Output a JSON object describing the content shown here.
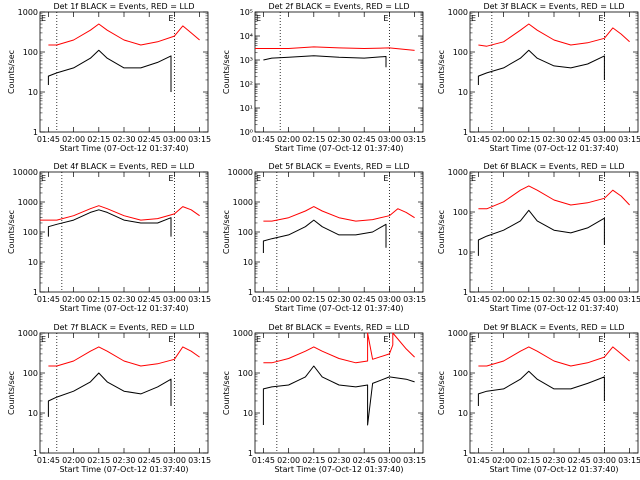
{
  "figure": {
    "xlabel": "Start Time (07-Oct-12 01:37:40)",
    "ylabel": "Counts/sec",
    "x_tick_labels": [
      "01:45",
      "02:00",
      "02:15",
      "02:30",
      "02:45",
      "03:00",
      "03:15"
    ],
    "corner_marker": "E",
    "colors": {
      "events": "#000000",
      "lld": "#ff0000"
    }
  },
  "chart_data": [
    {
      "type": "line",
      "title": "Det 1f BLACK = Events, RED = LLD",
      "x_range": [
        "01:40",
        "03:20"
      ],
      "y_scale": "log",
      "y_range": [
        1,
        1000
      ],
      "y_tick_labels": [
        "1",
        "10",
        "100",
        "1000"
      ],
      "vlines": [
        "01:50",
        "03:00"
      ],
      "series": [
        {
          "name": "Events",
          "color": "#000000",
          "x": [
            "01:45",
            "01:45",
            "01:50",
            "02:00",
            "02:10",
            "02:15",
            "02:20",
            "02:30",
            "02:40",
            "02:50",
            "02:58",
            "02:58"
          ],
          "y": [
            15,
            25,
            30,
            40,
            70,
            110,
            70,
            40,
            40,
            55,
            80,
            10
          ]
        },
        {
          "name": "LLD",
          "color": "#ff0000",
          "x": [
            "01:45",
            "01:50",
            "02:00",
            "02:10",
            "02:15",
            "02:20",
            "02:30",
            "02:40",
            "02:50",
            "03:00",
            "03:05",
            "03:10",
            "03:15"
          ],
          "y": [
            150,
            150,
            200,
            350,
            500,
            350,
            200,
            150,
            180,
            250,
            450,
            300,
            200
          ]
        }
      ]
    },
    {
      "type": "line",
      "title": "Det 2f BLACK = Events, RED = LLD",
      "x_range": [
        "01:40",
        "03:20"
      ],
      "y_scale": "log",
      "y_range": [
        1,
        100000
      ],
      "y_tick_labels": [
        "10⁰",
        "10¹",
        "10²",
        "10³",
        "10⁴",
        "10⁵"
      ],
      "vlines": [
        "01:55",
        "03:00"
      ],
      "series": [
        {
          "name": "Events",
          "color": "#000000",
          "x": [
            "01:45",
            "01:50",
            "02:00",
            "02:15",
            "02:30",
            "02:45",
            "02:58",
            "02:58"
          ],
          "y": [
            1000,
            1200,
            1300,
            1500,
            1300,
            1200,
            1400,
            500
          ]
        },
        {
          "name": "LLD",
          "color": "#ff0000",
          "x": [
            "01:40",
            "02:00",
            "02:15",
            "02:30",
            "02:45",
            "03:00",
            "03:15"
          ],
          "y": [
            3000,
            3000,
            3500,
            3200,
            3000,
            3200,
            2500
          ]
        }
      ]
    },
    {
      "type": "line",
      "title": "Det 3f BLACK = Events, RED = LLD",
      "x_range": [
        "01:40",
        "03:20"
      ],
      "y_scale": "log",
      "y_range": [
        1,
        1000
      ],
      "y_tick_labels": [
        "1",
        "10",
        "100",
        "1000"
      ],
      "vlines": [
        "01:53",
        "03:00"
      ],
      "series": [
        {
          "name": "Events",
          "color": "#000000",
          "x": [
            "01:45",
            "01:45",
            "01:50",
            "02:00",
            "02:10",
            "02:15",
            "02:20",
            "02:30",
            "02:40",
            "02:50",
            "03:00",
            "03:00"
          ],
          "y": [
            15,
            25,
            30,
            40,
            70,
            110,
            70,
            45,
            40,
            50,
            80,
            20
          ]
        },
        {
          "name": "LLD",
          "color": "#ff0000",
          "x": [
            "01:45",
            "01:50",
            "02:00",
            "02:10",
            "02:15",
            "02:20",
            "02:30",
            "02:40",
            "02:50",
            "03:00",
            "03:05",
            "03:10",
            "03:15"
          ],
          "y": [
            150,
            140,
            180,
            350,
            500,
            350,
            200,
            150,
            170,
            220,
            400,
            280,
            180
          ]
        }
      ]
    },
    {
      "type": "line",
      "title": "Det 4f BLACK = Events, RED = LLD",
      "x_range": [
        "01:40",
        "03:20"
      ],
      "y_scale": "log",
      "y_range": [
        1,
        10000
      ],
      "y_tick_labels": [
        "1",
        "10",
        "100",
        "1000",
        "10000"
      ],
      "vlines": [
        "01:53",
        "03:00"
      ],
      "series": [
        {
          "name": "Events",
          "color": "#000000",
          "x": [
            "01:45",
            "01:45",
            "01:50",
            "02:00",
            "02:10",
            "02:15",
            "02:20",
            "02:30",
            "02:40",
            "02:50",
            "02:58",
            "02:58"
          ],
          "y": [
            70,
            150,
            180,
            250,
            450,
            550,
            450,
            250,
            200,
            200,
            300,
            70
          ]
        },
        {
          "name": "LLD",
          "color": "#ff0000",
          "x": [
            "01:40",
            "01:50",
            "02:00",
            "02:10",
            "02:15",
            "02:20",
            "02:30",
            "02:40",
            "02:50",
            "03:00",
            "03:05",
            "03:10",
            "03:15"
          ],
          "y": [
            250,
            250,
            350,
            600,
            750,
            600,
            350,
            250,
            280,
            400,
            700,
            550,
            350
          ]
        }
      ]
    },
    {
      "type": "line",
      "title": "Det 5f BLACK = Events, RED = LLD",
      "x_range": [
        "01:40",
        "03:20"
      ],
      "y_scale": "log",
      "y_range": [
        1,
        10000
      ],
      "y_tick_labels": [
        "1",
        "10",
        "100",
        "1000",
        "10000"
      ],
      "vlines": [
        "01:53",
        "03:00"
      ],
      "series": [
        {
          "name": "Events",
          "color": "#000000",
          "x": [
            "01:45",
            "01:45",
            "01:50",
            "02:00",
            "02:10",
            "02:15",
            "02:20",
            "02:30",
            "02:40",
            "02:50",
            "02:58",
            "02:58"
          ],
          "y": [
            20,
            50,
            60,
            80,
            150,
            250,
            150,
            80,
            80,
            100,
            180,
            30
          ]
        },
        {
          "name": "LLD",
          "color": "#ff0000",
          "x": [
            "01:45",
            "01:50",
            "02:00",
            "02:10",
            "02:15",
            "02:20",
            "02:30",
            "02:40",
            "02:50",
            "03:00",
            "03:05",
            "03:10",
            "03:15"
          ],
          "y": [
            230,
            230,
            300,
            500,
            700,
            500,
            300,
            230,
            260,
            350,
            600,
            450,
            300
          ]
        }
      ]
    },
    {
      "type": "line",
      "title": "Det 6f BLACK = Events, RED = LLD",
      "x_range": [
        "01:40",
        "03:20"
      ],
      "y_scale": "log",
      "y_range": [
        1,
        1000
      ],
      "y_tick_labels": [
        "1",
        "10",
        "100",
        "1000"
      ],
      "vlines": [
        "01:53",
        "03:00"
      ],
      "series": [
        {
          "name": "Events",
          "color": "#000000",
          "x": [
            "01:45",
            "01:45",
            "01:50",
            "02:00",
            "02:10",
            "02:15",
            "02:20",
            "02:30",
            "02:40",
            "02:50",
            "03:00",
            "03:00"
          ],
          "y": [
            8,
            20,
            25,
            35,
            60,
            110,
            60,
            35,
            30,
            40,
            70,
            15
          ]
        },
        {
          "name": "LLD",
          "color": "#ff0000",
          "x": [
            "01:45",
            "01:50",
            "02:00",
            "02:10",
            "02:15",
            "02:20",
            "02:30",
            "02:40",
            "02:50",
            "03:00",
            "03:05",
            "03:10",
            "03:15"
          ],
          "y": [
            120,
            120,
            180,
            350,
            450,
            350,
            200,
            150,
            170,
            220,
            350,
            250,
            150
          ]
        }
      ]
    },
    {
      "type": "line",
      "title": "Det 7f BLACK = Events, RED = LLD",
      "x_range": [
        "01:40",
        "03:20"
      ],
      "y_scale": "log",
      "y_range": [
        1,
        1000
      ],
      "y_tick_labels": [
        "1",
        "10",
        "100",
        "1000"
      ],
      "vlines": [
        "01:50",
        "03:00"
      ],
      "series": [
        {
          "name": "Events",
          "color": "#000000",
          "x": [
            "01:45",
            "01:45",
            "01:50",
            "02:00",
            "02:10",
            "02:15",
            "02:20",
            "02:30",
            "02:40",
            "02:50",
            "02:58",
            "02:58"
          ],
          "y": [
            8,
            20,
            25,
            35,
            60,
            100,
            60,
            35,
            30,
            45,
            70,
            15
          ]
        },
        {
          "name": "LLD",
          "color": "#ff0000",
          "x": [
            "01:45",
            "01:50",
            "02:00",
            "02:10",
            "02:15",
            "02:20",
            "02:30",
            "02:40",
            "02:50",
            "03:00",
            "03:05",
            "03:10",
            "03:15"
          ],
          "y": [
            150,
            150,
            200,
            350,
            450,
            350,
            200,
            150,
            170,
            220,
            450,
            350,
            250
          ]
        }
      ]
    },
    {
      "type": "line",
      "title": "Det 8f BLACK = Events, RED = LLD",
      "x_range": [
        "01:40",
        "03:20"
      ],
      "y_scale": "log",
      "y_range": [
        1,
        1000
      ],
      "y_tick_labels": [
        "1",
        "10",
        "100",
        "1000"
      ],
      "vlines": [
        "01:53",
        "03:00"
      ],
      "series": [
        {
          "name": "Events",
          "color": "#000000",
          "x": [
            "01:45",
            "01:45",
            "01:50",
            "02:00",
            "02:10",
            "02:15",
            "02:20",
            "02:30",
            "02:40",
            "02:47",
            "02:47",
            "02:50",
            "03:00",
            "03:10",
            "03:15"
          ],
          "y": [
            5,
            40,
            45,
            50,
            80,
            150,
            80,
            50,
            45,
            50,
            5,
            55,
            80,
            70,
            60
          ]
        },
        {
          "name": "LLD",
          "color": "#ff0000",
          "x": [
            "01:45",
            "01:50",
            "02:00",
            "02:10",
            "02:15",
            "02:20",
            "02:30",
            "02:40",
            "02:47",
            "02:47",
            "02:50",
            "03:00",
            "03:02",
            "03:02",
            "03:10",
            "03:15"
          ],
          "y": [
            180,
            180,
            230,
            350,
            450,
            350,
            230,
            180,
            200,
            1000,
            220,
            300,
            500,
            1000,
            400,
            250
          ]
        }
      ]
    },
    {
      "type": "line",
      "title": "Det 9f BLACK = Events, RED = LLD",
      "x_range": [
        "01:40",
        "03:20"
      ],
      "y_scale": "log",
      "y_range": [
        1,
        1000
      ],
      "y_tick_labels": [
        "1",
        "10",
        "100",
        "1000"
      ],
      "vlines": [
        "01:53",
        "03:00"
      ],
      "series": [
        {
          "name": "Events",
          "color": "#000000",
          "x": [
            "01:45",
            "01:45",
            "01:50",
            "02:00",
            "02:10",
            "02:15",
            "02:20",
            "02:30",
            "02:40",
            "02:50",
            "03:00",
            "03:00"
          ],
          "y": [
            15,
            30,
            35,
            40,
            70,
            110,
            70,
            40,
            40,
            55,
            80,
            20
          ]
        },
        {
          "name": "LLD",
          "color": "#ff0000",
          "x": [
            "01:45",
            "01:50",
            "02:00",
            "02:10",
            "02:15",
            "02:20",
            "02:30",
            "02:40",
            "02:50",
            "03:00",
            "03:05",
            "03:10",
            "03:15"
          ],
          "y": [
            150,
            150,
            200,
            350,
            450,
            350,
            200,
            150,
            180,
            250,
            450,
            300,
            200
          ]
        }
      ]
    }
  ]
}
